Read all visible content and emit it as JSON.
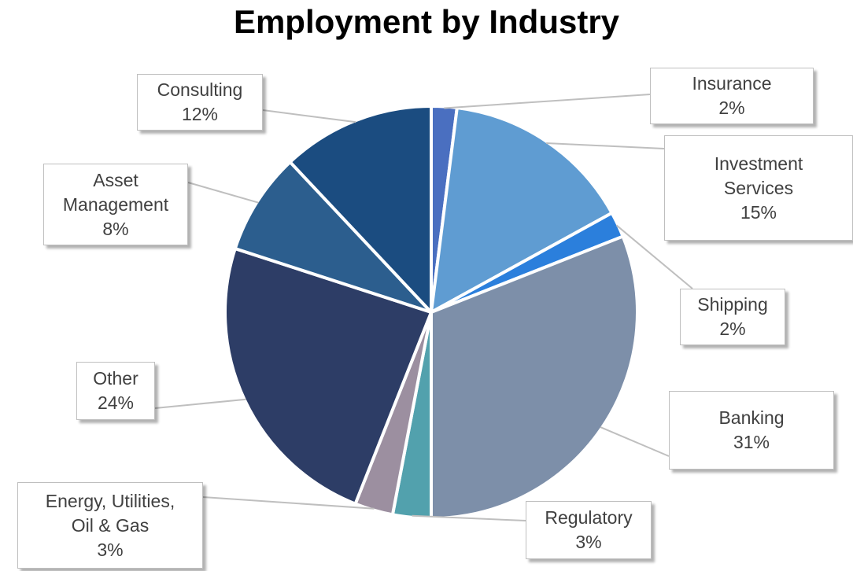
{
  "chart_data": {
    "type": "pie",
    "title": "Employment by Industry",
    "start_angle_deg": 0,
    "direction": "clockwise",
    "slices": [
      {
        "label": "Insurance",
        "value": 2,
        "display": "2%",
        "color": "#4a6fc0"
      },
      {
        "label": "Investment Services",
        "value": 15,
        "display": "15%",
        "color": "#5f9cd2"
      },
      {
        "label": "Shipping",
        "value": 2,
        "display": "2%",
        "color": "#2b7fdc"
      },
      {
        "label": "Banking",
        "value": 31,
        "display": "31%",
        "color": "#7d8fa9"
      },
      {
        "label": "Regulatory",
        "value": 3,
        "display": "3%",
        "color": "#52a1ad"
      },
      {
        "label": "Energy, Utilities, Oil & Gas",
        "value": 3,
        "display": "3%",
        "color": "#9c8fa0"
      },
      {
        "label": "Other",
        "value": 24,
        "display": "24%",
        "color": "#2d3d66"
      },
      {
        "label": "Asset Management",
        "value": 8,
        "display": "8%",
        "color": "#2c5e8e"
      },
      {
        "label": "Consulting",
        "value": 12,
        "display": "12%",
        "color": "#1b4c80"
      }
    ]
  }
}
